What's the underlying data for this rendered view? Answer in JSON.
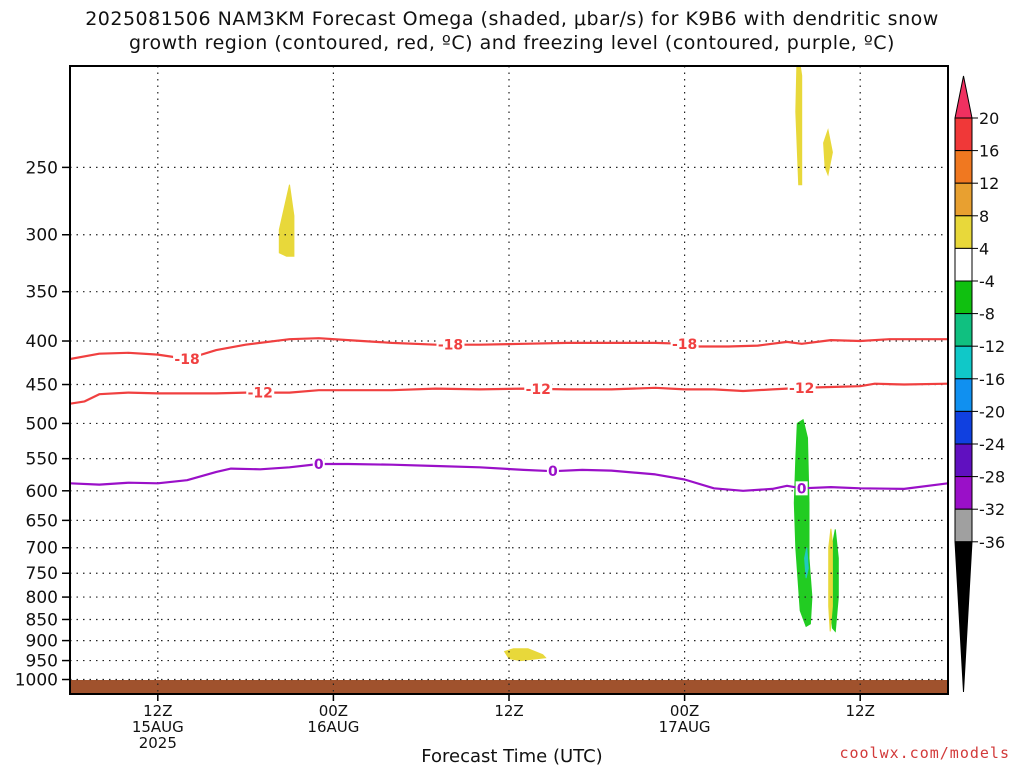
{
  "title": {
    "line1": "2025081506 NAM3KM Forecast Omega (shaded, μbar/s) for K9B6 with dendritic snow",
    "line2": "growth region (contoured, red, ºC) and freezing level (contoured, purple, ºC)"
  },
  "credit": "coolwx.com/models",
  "chart_data": {
    "type": "heatmap",
    "xlabel": "Forecast Time (UTC)",
    "ylabel": "",
    "x_axis_hours": [
      0,
      60
    ],
    "y_axis_pressure_hpa": [
      1040,
      190
    ],
    "y_scale": "log",
    "grid": true,
    "y_ticks": [
      "250",
      "300",
      "350",
      "400",
      "450",
      "500",
      "550",
      "600",
      "650",
      "700",
      "750",
      "800",
      "850",
      "900",
      "950",
      "1000"
    ],
    "x_ticks": [
      {
        "hour": 6,
        "line1": "12Z",
        "line2": "15AUG",
        "line3": "2025"
      },
      {
        "hour": 18,
        "line1": "00Z",
        "line2": "16AUG",
        "line3": ""
      },
      {
        "hour": 30,
        "line1": "12Z",
        "line2": "",
        "line3": ""
      },
      {
        "hour": 42,
        "line1": "00Z",
        "line2": "17AUG",
        "line3": ""
      },
      {
        "hour": 54,
        "line1": "12Z",
        "line2": "",
        "line3": ""
      }
    ],
    "contours": [
      {
        "value": -18,
        "label": "-18",
        "color": "#f04040",
        "points": [
          [
            0,
            420
          ],
          [
            2,
            414
          ],
          [
            4,
            413
          ],
          [
            6,
            415
          ],
          [
            8,
            420
          ],
          [
            10,
            410
          ],
          [
            12,
            404
          ],
          [
            15,
            398
          ],
          [
            17,
            397
          ],
          [
            19,
            399
          ],
          [
            22,
            402
          ],
          [
            25,
            404
          ],
          [
            28,
            404
          ],
          [
            31,
            403
          ],
          [
            34,
            402
          ],
          [
            37,
            402
          ],
          [
            40,
            402
          ],
          [
            42,
            403
          ],
          [
            43,
            406
          ],
          [
            45,
            406
          ],
          [
            47,
            405
          ],
          [
            49,
            401
          ],
          [
            50,
            403
          ],
          [
            52,
            399
          ],
          [
            54,
            400
          ],
          [
            56,
            398
          ],
          [
            58,
            398
          ],
          [
            60,
            398
          ]
        ],
        "labels_at_hour": [
          8,
          26,
          42
        ]
      },
      {
        "value": -12,
        "label": "-12",
        "color": "#f04040",
        "points": [
          [
            0,
            474
          ],
          [
            1,
            471
          ],
          [
            2,
            462
          ],
          [
            4,
            460
          ],
          [
            6,
            461
          ],
          [
            8,
            461
          ],
          [
            10,
            461
          ],
          [
            12,
            460
          ],
          [
            15,
            460
          ],
          [
            17,
            457
          ],
          [
            18,
            457
          ],
          [
            20,
            457
          ],
          [
            22,
            457
          ],
          [
            25,
            455
          ],
          [
            28,
            456
          ],
          [
            31,
            455
          ],
          [
            34,
            456
          ],
          [
            37,
            456
          ],
          [
            40,
            454
          ],
          [
            42,
            456
          ],
          [
            44,
            456
          ],
          [
            46,
            458
          ],
          [
            48,
            456
          ],
          [
            49,
            455
          ],
          [
            50,
            454
          ],
          [
            52,
            453
          ],
          [
            54,
            452
          ],
          [
            55,
            449
          ],
          [
            57,
            450
          ],
          [
            60,
            449
          ]
        ],
        "labels_at_hour": [
          13,
          32,
          50
        ]
      },
      {
        "value": 0,
        "label": "0",
        "color": "#9a10c8",
        "points": [
          [
            0,
            588
          ],
          [
            2,
            590
          ],
          [
            4,
            587
          ],
          [
            6,
            588
          ],
          [
            8,
            583
          ],
          [
            10,
            570
          ],
          [
            11,
            565
          ],
          [
            13,
            566
          ],
          [
            15,
            563
          ],
          [
            17,
            558
          ],
          [
            19,
            558
          ],
          [
            22,
            559
          ],
          [
            25,
            561
          ],
          [
            28,
            563
          ],
          [
            31,
            567
          ],
          [
            33,
            569
          ],
          [
            35,
            567
          ],
          [
            37,
            568
          ],
          [
            40,
            574
          ],
          [
            42,
            582
          ],
          [
            44,
            596
          ],
          [
            46,
            600
          ],
          [
            48,
            597
          ],
          [
            49,
            592
          ],
          [
            50,
            596
          ],
          [
            52,
            594
          ],
          [
            54,
            596
          ],
          [
            57,
            597
          ],
          [
            60,
            588
          ]
        ],
        "labels_at_hour": [
          17,
          33,
          50
        ]
      }
    ],
    "shaded_regions": [
      {
        "color": "#e8d83a",
        "points": [
          [
            14.3,
            315
          ],
          [
            14.3,
            296
          ],
          [
            15.0,
            262
          ],
          [
            15.3,
            285
          ],
          [
            15.3,
            318
          ],
          [
            14.8,
            318
          ]
        ]
      },
      {
        "color": "#e8d83a",
        "points": [
          [
            49.7,
            180
          ],
          [
            50.0,
            195
          ],
          [
            50.0,
            262
          ],
          [
            49.8,
            262
          ],
          [
            49.6,
            215
          ]
        ]
      },
      {
        "color": "#e8d83a",
        "points": [
          [
            51.5,
            234
          ],
          [
            51.8,
            226
          ],
          [
            52.1,
            240
          ],
          [
            51.8,
            255
          ],
          [
            51.6,
            250
          ]
        ]
      },
      {
        "color": "#e8d83a",
        "points": [
          [
            29.7,
            927
          ],
          [
            30.3,
            920
          ],
          [
            31.3,
            920
          ],
          [
            32.3,
            935
          ],
          [
            32.5,
            943
          ],
          [
            30.8,
            950
          ],
          [
            30.0,
            945
          ]
        ]
      },
      {
        "color": "#22cc22",
        "points": [
          [
            49.7,
            500
          ],
          [
            50.1,
            495
          ],
          [
            50.4,
            520
          ],
          [
            50.5,
            620
          ],
          [
            50.5,
            720
          ],
          [
            50.7,
            800
          ],
          [
            50.6,
            860
          ],
          [
            50.3,
            866
          ],
          [
            49.9,
            830
          ],
          [
            49.6,
            700
          ],
          [
            49.5,
            620
          ],
          [
            49.6,
            550
          ]
        ]
      },
      {
        "color": "#22cc22",
        "points": [
          [
            52.0,
            710
          ],
          [
            52.3,
            666
          ],
          [
            52.5,
            720
          ],
          [
            52.5,
            800
          ],
          [
            52.3,
            878
          ],
          [
            52.1,
            870
          ],
          [
            51.9,
            790
          ]
        ]
      },
      {
        "color": "#e8d83a",
        "points": [
          [
            51.85,
            700
          ],
          [
            52.0,
            665
          ],
          [
            52.1,
            690
          ],
          [
            52.1,
            820
          ],
          [
            51.95,
            878
          ],
          [
            51.85,
            820
          ]
        ]
      },
      {
        "color": "#20c8c0",
        "points": [
          [
            50.2,
            720
          ],
          [
            50.35,
            700
          ],
          [
            50.45,
            740
          ],
          [
            50.3,
            760
          ]
        ]
      }
    ],
    "ground_bar_color": "#a0522d",
    "colorbar": {
      "labels": [
        "20",
        "16",
        "12",
        "8",
        "4",
        "-4",
        "-8",
        "-12",
        "-16",
        "-20",
        "-24",
        "-28",
        "-32",
        "-36"
      ],
      "colors": [
        "#f03060",
        "#f03838",
        "#f07820",
        "#e8a030",
        "#e8d83a",
        "#ffffff",
        "#10c010",
        "#10c080",
        "#10c8c8",
        "#1090f0",
        "#1040e0",
        "#6010c0",
        "#9a10c8",
        "#a0a0a0",
        "#000000"
      ]
    }
  }
}
